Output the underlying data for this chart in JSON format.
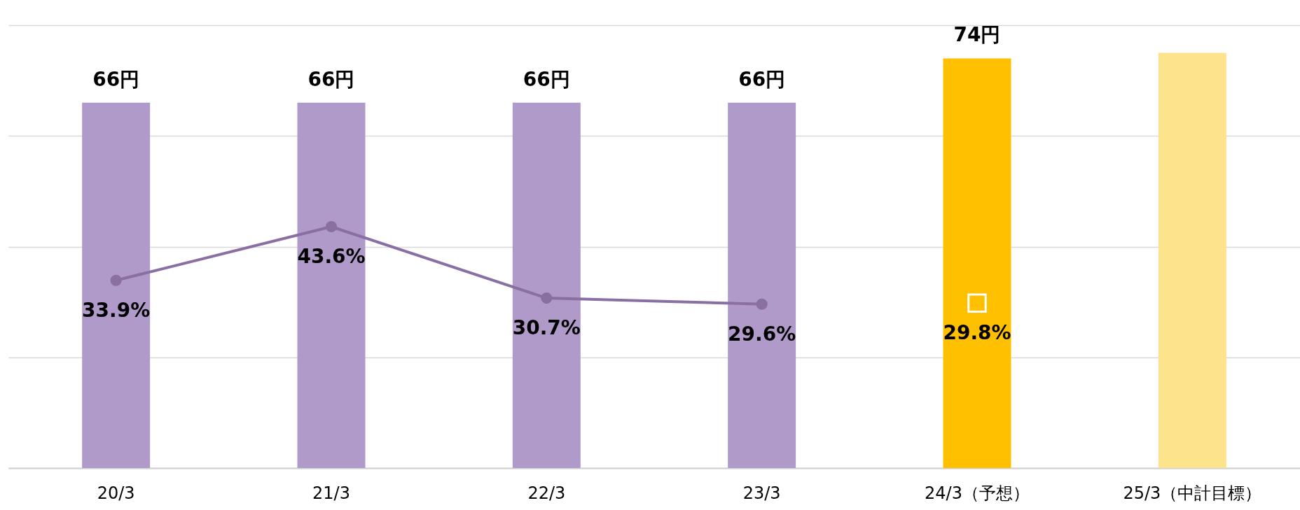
{
  "chart_data": {
    "type": "bar",
    "categories": [
      "20/3",
      "21/3",
      "22/3",
      "23/3",
      "24/3（予想）",
      "25/3（中計目標）"
    ],
    "series": [
      {
        "colors": [
          "#b09ac9",
          "#b09ac9",
          "#b09ac9",
          "#b09ac9",
          "#ffc000",
          "#fde38c"
        ],
        "values": [
          66,
          66,
          66,
          66,
          74,
          75
        ],
        "value_labels": [
          "66円",
          "66円",
          "66円",
          "66円",
          "74円",
          null
        ]
      },
      {
        "type": "line",
        "color": "#8a6fa3",
        "marker": "circle",
        "values": [
          33.9,
          43.6,
          30.7,
          29.6,
          null,
          null
        ],
        "value_labels": [
          "33.9%",
          "43.6%",
          "30.7%",
          "29.6%",
          null,
          null
        ]
      },
      {
        "type": "scatter",
        "color": "#ffc000",
        "marker": "square",
        "values": [
          null,
          null,
          null,
          null,
          29.8,
          null
        ],
        "value_labels": [
          null,
          null,
          null,
          null,
          "29.8%",
          null
        ]
      }
    ],
    "ylim": [
      0,
      80
    ],
    "yticks": [
      {
        "value": 0,
        "label": null
      },
      {
        "value": 20,
        "label": null
      },
      {
        "value": 40,
        "label": null
      },
      {
        "value": 60,
        "label": null
      },
      {
        "value": 80,
        "label": null
      }
    ],
    "grid": "y",
    "tick_labels": "x"
  }
}
